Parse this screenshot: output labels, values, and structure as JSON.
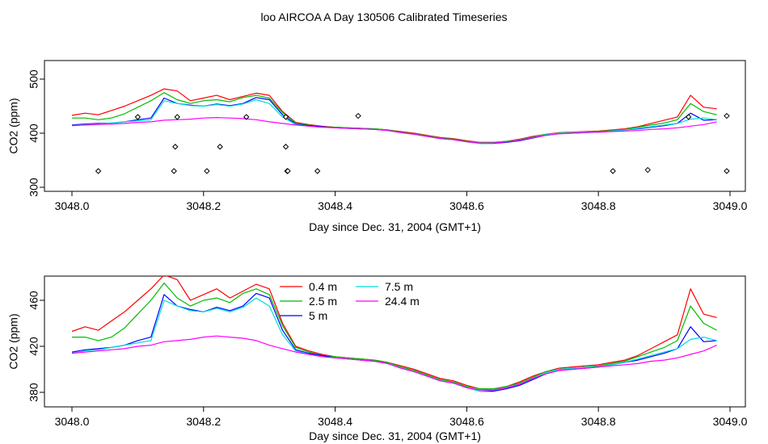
{
  "title": "loo AIRCOA A  Day 130506  Calibrated Timeseries",
  "colors": {
    "0.4 m": "#ff0000",
    "2.5 m": "#00bb00",
    "5 m": "#0000ff",
    "7.5 m": "#00dddd",
    "24.4 m": "#ff00ff"
  },
  "chart_data": [
    {
      "type": "line",
      "xlabel": "Day since Dec. 31, 2004 (GMT+1)",
      "ylabel": "CO2 (ppm)",
      "xlim": [
        3048.0,
        3049.0
      ],
      "ylim": [
        300,
        500
      ],
      "xticks": [
        "3048.0",
        "3048.2",
        "3048.4",
        "3048.6",
        "3048.8",
        "3049.0"
      ],
      "yticks": [
        "300",
        "400",
        "500"
      ],
      "grid": false,
      "legend": "none",
      "series_source": "same as second panel",
      "points": {
        "x": [
          3048.04,
          3048.1,
          3048.155,
          3048.157,
          3048.16,
          3048.205,
          3048.225,
          3048.265,
          3048.325,
          3048.325,
          3048.327,
          3048.328,
          3048.373,
          3048.435,
          3048.822,
          3048.875,
          3048.937,
          3048.995,
          3048.995
        ],
        "y": [
          330,
          430,
          330,
          375,
          430,
          330,
          375,
          430,
          430,
          375,
          330,
          330,
          330,
          432,
          330,
          332,
          430,
          330,
          432
        ]
      }
    },
    {
      "type": "line",
      "xlabel": "Day since Dec. 31, 2004 (GMT+1)",
      "ylabel": "CO2 (ppm)",
      "xlim": [
        3048.0,
        3049.0
      ],
      "ylim": [
        375,
        485
      ],
      "xticks": [
        "3048.0",
        "3048.2",
        "3048.4",
        "3048.6",
        "3048.8",
        "3049.0"
      ],
      "yticks": [
        "380",
        "420",
        "460"
      ],
      "grid": false,
      "legend": "top-left",
      "x": [
        3048.0,
        3048.02,
        3048.04,
        3048.06,
        3048.08,
        3048.1,
        3048.12,
        3048.14,
        3048.16,
        3048.18,
        3048.2,
        3048.22,
        3048.24,
        3048.26,
        3048.28,
        3048.3,
        3048.32,
        3048.34,
        3048.36,
        3048.38,
        3048.4,
        3048.42,
        3048.44,
        3048.46,
        3048.48,
        3048.5,
        3048.52,
        3048.54,
        3048.56,
        3048.58,
        3048.6,
        3048.62,
        3048.64,
        3048.66,
        3048.68,
        3048.7,
        3048.72,
        3048.74,
        3048.76,
        3048.78,
        3048.8,
        3048.82,
        3048.84,
        3048.86,
        3048.88,
        3048.9,
        3048.92,
        3048.94,
        3048.96,
        3048.98
      ],
      "series": [
        {
          "name": "0.4 m",
          "values": [
            433,
            437,
            434,
            442,
            450,
            460,
            470,
            482,
            478,
            460,
            465,
            470,
            462,
            468,
            474,
            470,
            440,
            420,
            416,
            413,
            411,
            410,
            409,
            408,
            406,
            403,
            400,
            396,
            392,
            390,
            386,
            383,
            383,
            385,
            389,
            394,
            398,
            401,
            402,
            403,
            404,
            406,
            408,
            412,
            418,
            424,
            430,
            470,
            448,
            445
          ]
        },
        {
          "name": "2.5 m",
          "values": [
            428,
            428,
            425,
            428,
            436,
            448,
            460,
            475,
            462,
            455,
            460,
            462,
            458,
            466,
            470,
            465,
            438,
            419,
            415,
            412,
            411,
            410,
            409,
            408,
            406,
            402,
            399,
            395,
            391,
            389,
            385,
            383,
            383,
            385,
            388,
            393,
            398,
            400,
            401,
            402,
            403,
            405,
            407,
            411,
            415,
            419,
            425,
            455,
            440,
            434
          ]
        },
        {
          "name": "5 m",
          "values": [
            415,
            417,
            418,
            419,
            421,
            425,
            428,
            465,
            455,
            452,
            450,
            454,
            451,
            455,
            466,
            462,
            434,
            417,
            414,
            412,
            410,
            409,
            408,
            407,
            405,
            401,
            398,
            394,
            390,
            388,
            384,
            381,
            381,
            383,
            386,
            391,
            396,
            399,
            400,
            401,
            402,
            404,
            406,
            408,
            411,
            414,
            418,
            437,
            424,
            425
          ]
        },
        {
          "name": "7.5 m",
          "values": [
            414,
            416,
            417,
            419,
            421,
            423,
            425,
            460,
            455,
            451,
            450,
            453,
            450,
            454,
            462,
            455,
            430,
            416,
            413,
            411,
            410,
            409,
            408,
            407,
            405,
            401,
            398,
            394,
            390,
            388,
            384,
            381,
            382,
            384,
            387,
            392,
            397,
            400,
            401,
            402,
            402,
            404,
            406,
            409,
            412,
            415,
            418,
            426,
            428,
            425
          ]
        },
        {
          "name": "24.4 m",
          "values": [
            414,
            415,
            416,
            417,
            418,
            420,
            421,
            424,
            425,
            426,
            428,
            429,
            428,
            427,
            425,
            421,
            418,
            415,
            413,
            411,
            410,
            409,
            408,
            407,
            405,
            401,
            398,
            394,
            390,
            388,
            384,
            382,
            382,
            384,
            387,
            392,
            396,
            399,
            400,
            401,
            402,
            403,
            404,
            405,
            407,
            408,
            410,
            413,
            416,
            421
          ]
        }
      ]
    }
  ]
}
